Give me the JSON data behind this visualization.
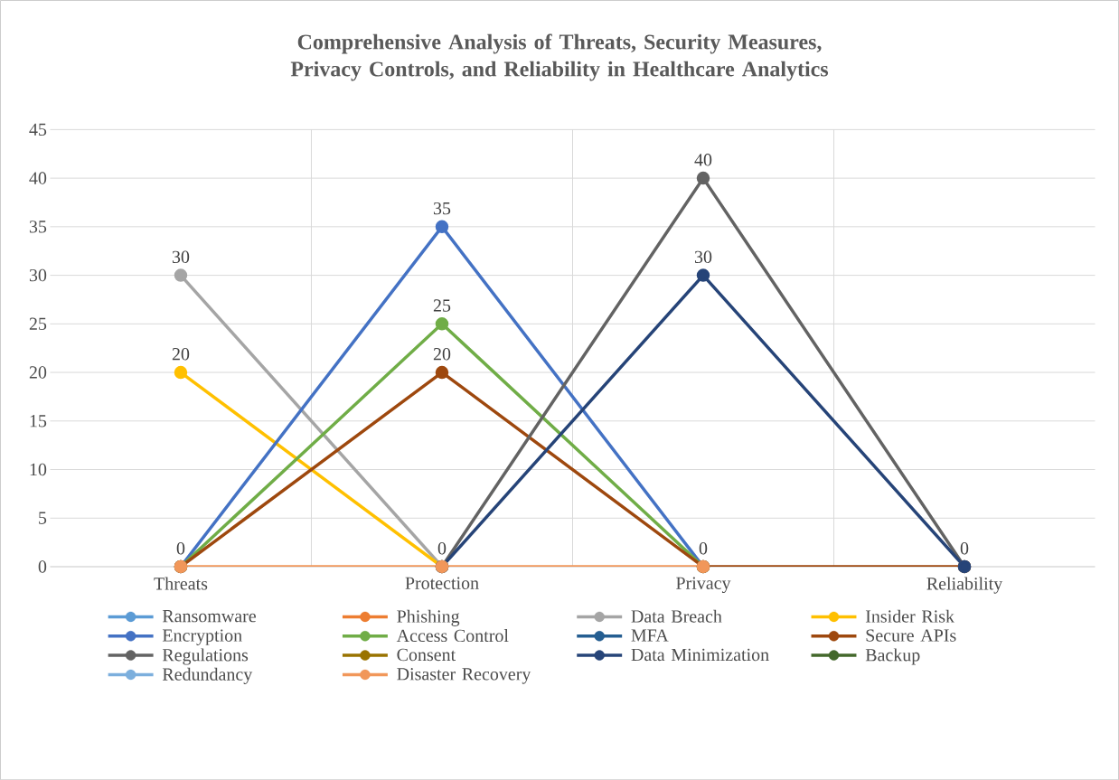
{
  "chart_data": {
    "type": "line",
    "title": "Comprehensive Analysis of Threats, Security Measures, Privacy Controls, and Reliability in Healthcare Analytics",
    "categories": [
      "Threats",
      "Protection",
      "Privacy",
      "Reliability"
    ],
    "series": [
      {
        "name": "Ransomware",
        "color": "#5b9bd5",
        "values": [
          null,
          null,
          null,
          null
        ]
      },
      {
        "name": "Phishing",
        "color": "#ed7d31",
        "values": [
          null,
          null,
          null,
          null
        ]
      },
      {
        "name": "Data Breach",
        "color": "#a5a5a5",
        "values": [
          30,
          0,
          null,
          null
        ],
        "value_labels": [
          "30",
          null,
          null,
          null
        ]
      },
      {
        "name": "Insider Risk",
        "color": "#ffc000",
        "values": [
          20,
          0,
          null,
          null
        ],
        "value_labels": [
          "20",
          null,
          null,
          null
        ]
      },
      {
        "name": "Encryption",
        "color": "#4472c4",
        "values": [
          0,
          35,
          0,
          null
        ],
        "value_labels": [
          null,
          "35",
          null,
          null
        ]
      },
      {
        "name": "Access Control",
        "color": "#70ad47",
        "values": [
          0,
          25,
          0,
          null
        ],
        "value_labels": [
          null,
          "25",
          null,
          null
        ]
      },
      {
        "name": "MFA",
        "color": "#255e91",
        "values": [
          null,
          null,
          null,
          null
        ]
      },
      {
        "name": "Secure APIs",
        "color": "#9e480e",
        "values": [
          0,
          20,
          0,
          0
        ],
        "value_labels": [
          null,
          "20",
          null,
          null
        ]
      },
      {
        "name": "Regulations",
        "color": "#636363",
        "values": [
          null,
          0,
          40,
          0
        ],
        "value_labels": [
          null,
          null,
          "40",
          null
        ]
      },
      {
        "name": "Consent",
        "color": "#997300",
        "values": [
          null,
          null,
          null,
          null
        ]
      },
      {
        "name": "Data Minimization",
        "color": "#264478",
        "values": [
          null,
          0,
          30,
          0
        ],
        "value_labels": [
          null,
          null,
          "30",
          "0"
        ]
      },
      {
        "name": "Backup",
        "color": "#43682b",
        "values": [
          null,
          null,
          null,
          null
        ]
      },
      {
        "name": "Redundancy",
        "color": "#7cafdd",
        "values": [
          null,
          null,
          null,
          null
        ]
      },
      {
        "name": "Disaster Recovery",
        "color": "#f1975a",
        "values": [
          0,
          0,
          0,
          null
        ],
        "value_labels": [
          "0",
          "0",
          "0",
          null
        ]
      }
    ],
    "ylim": [
      0,
      45
    ],
    "yticks": [
      0,
      5,
      10,
      15,
      20,
      25,
      30,
      35,
      40,
      45
    ],
    "grid": true,
    "legend": "bottom",
    "marker": "circle",
    "line_style": "solid"
  }
}
